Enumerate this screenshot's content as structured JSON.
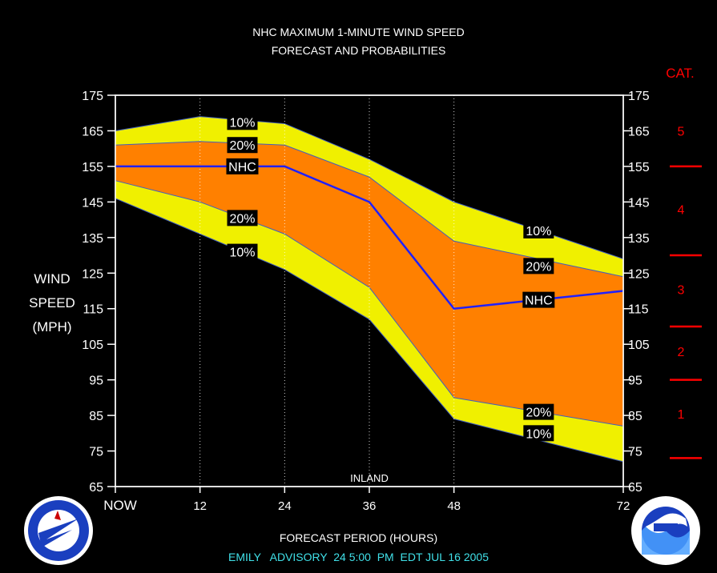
{
  "title": "NHC MAXIMUM 1-MINUTE WIND SPEED",
  "subtitle": "FORECAST AND PROBABILITIES",
  "ylabel_lines": [
    "WIND",
    "SPEED",
    "(MPH)"
  ],
  "xlabel": "FORECAST PERIOD (HOURS)",
  "advisory": "EMILY   ADVISORY  24 5:00  PM  EDT JUL 16 2005",
  "cat_label": "CAT.",
  "inland_label": "INLAND",
  "chart_data": {
    "type": "area",
    "title": "NHC MAXIMUM 1-MINUTE WIND SPEED",
    "subtitle": "FORECAST AND PROBABILITIES",
    "xlabel": "FORECAST PERIOD (HOURS)",
    "ylabel": "WIND SPEED (MPH)",
    "x": [
      0,
      12,
      24,
      36,
      48,
      72
    ],
    "x_tick_labels": [
      "NOW",
      "12",
      "24",
      "36",
      "48",
      "72"
    ],
    "ylim": [
      65,
      175
    ],
    "y_ticks": [
      65,
      75,
      85,
      95,
      105,
      115,
      125,
      135,
      145,
      155,
      165,
      175
    ],
    "inland_hour": 36,
    "series": [
      {
        "name": "10%",
        "role": "upper-outer",
        "color": "#f0f000",
        "values": [
          165,
          169,
          167,
          157,
          145,
          129
        ]
      },
      {
        "name": "20%",
        "role": "upper-inner",
        "color": "#ff8000",
        "values": [
          161,
          162,
          161,
          152,
          134,
          124
        ]
      },
      {
        "name": "NHC",
        "role": "forecast",
        "color": "#2020ff",
        "values": [
          155,
          155,
          155,
          145,
          115,
          120
        ]
      },
      {
        "name": "20%",
        "role": "lower-inner",
        "color": "#ff8000",
        "values": [
          151,
          145,
          136,
          121,
          90,
          82
        ]
      },
      {
        "name": "10%",
        "role": "lower-outer",
        "color": "#f0f000",
        "values": [
          146,
          136,
          126,
          112,
          84,
          72
        ]
      }
    ],
    "labels": [
      {
        "text": "10%",
        "x": 18,
        "y": 167.5
      },
      {
        "text": "20%",
        "x": 18,
        "y": 161
      },
      {
        "text": "NHC",
        "x": 18,
        "y": 155
      },
      {
        "text": "20%",
        "x": 18,
        "y": 140.5
      },
      {
        "text": "10%",
        "x": 18,
        "y": 131
      },
      {
        "text": "10%",
        "x": 60,
        "y": 137
      },
      {
        "text": "20%",
        "x": 60,
        "y": 127
      },
      {
        "text": "NHC",
        "x": 60,
        "y": 117.5
      },
      {
        "text": "20%",
        "x": 60,
        "y": 86
      },
      {
        "text": "10%",
        "x": 60,
        "y": 80
      }
    ],
    "categories": [
      {
        "label": "5",
        "y": 165
      },
      {
        "label": "4",
        "y": 143
      },
      {
        "label": "3",
        "y": 120.5
      },
      {
        "label": "2",
        "y": 103
      },
      {
        "label": "1",
        "y": 85.5
      }
    ],
    "category_boundaries": [
      155,
      130,
      110,
      95,
      73
    ],
    "colors": {
      "background": "#000000",
      "yellow": "#f0f000",
      "orange": "#ff8000",
      "nhc_line": "#2020ff",
      "category": "#ff0000",
      "advisory": "#40e0e8"
    },
    "grid": "vertical dotted at 12, 24, 36, 48"
  }
}
